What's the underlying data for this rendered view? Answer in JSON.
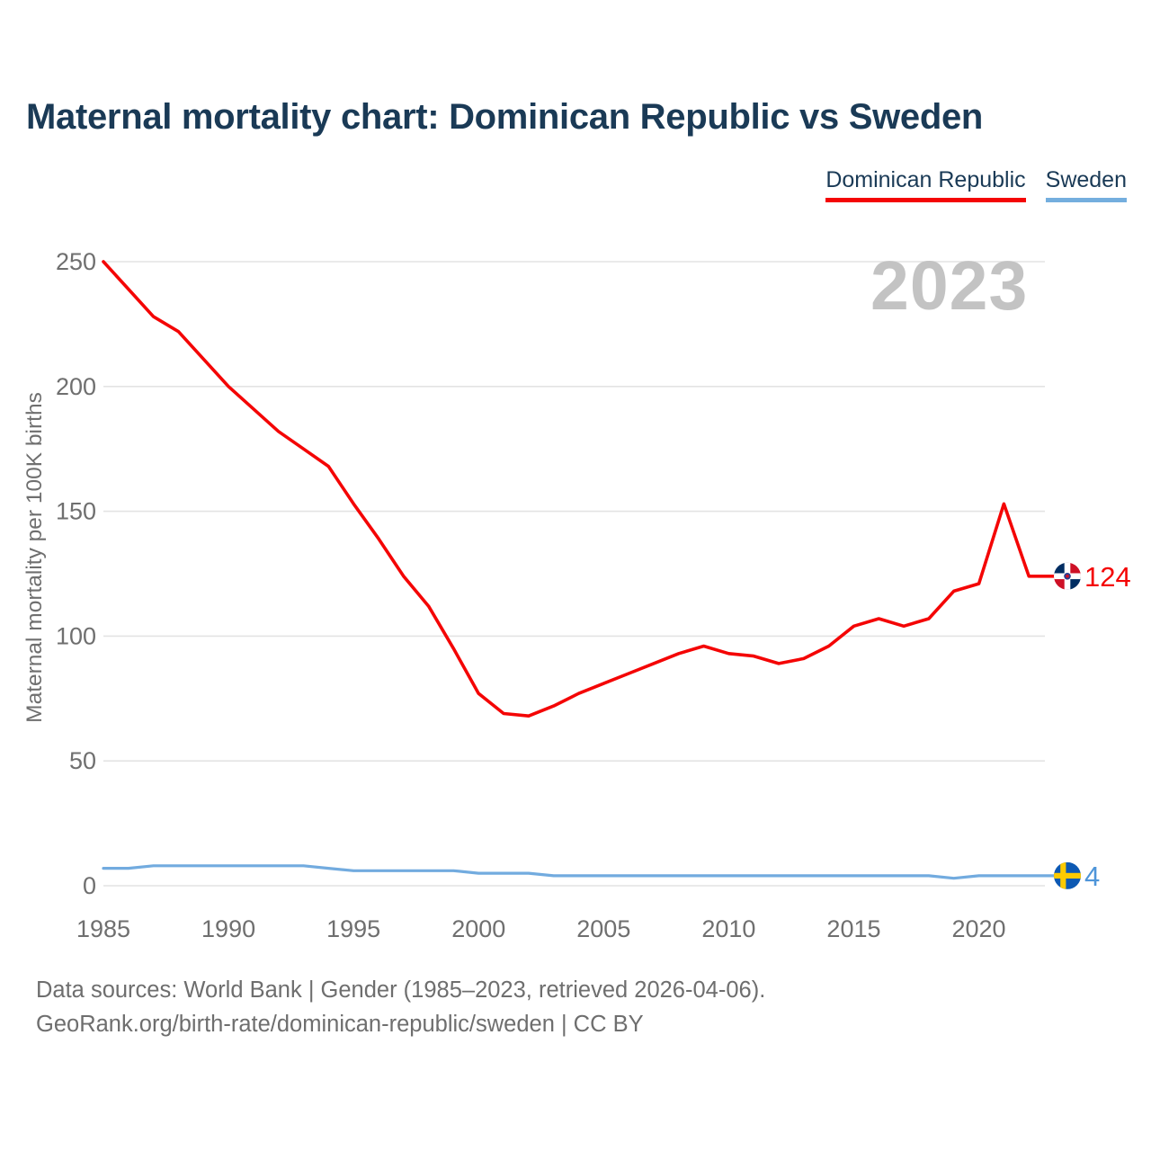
{
  "title": "Maternal mortality chart: Dominican Republic vs Sweden",
  "legend": [
    {
      "label": "Dominican Republic",
      "color": "#f40505"
    },
    {
      "label": "Sweden",
      "color": "#74aede"
    }
  ],
  "watermark": "2023",
  "chart_data": {
    "type": "line",
    "title": "Maternal mortality chart: Dominican Republic vs Sweden",
    "xlabel": "",
    "ylabel": "Maternal mortality per 100K births",
    "x": [
      1985,
      1986,
      1987,
      1988,
      1989,
      1990,
      1991,
      1992,
      1993,
      1994,
      1995,
      1996,
      1997,
      1998,
      1999,
      2000,
      2001,
      2002,
      2003,
      2004,
      2005,
      2006,
      2007,
      2008,
      2009,
      2010,
      2011,
      2012,
      2013,
      2014,
      2015,
      2016,
      2017,
      2018,
      2019,
      2020,
      2021,
      2022,
      2023
    ],
    "series": [
      {
        "name": "Dominican Republic",
        "color": "#f40505",
        "flag": "dominican-republic",
        "end_label": "124",
        "end_label_color": "#f40505",
        "values": [
          250,
          239,
          228,
          222,
          211,
          200,
          191,
          182,
          175,
          168,
          153,
          139,
          124,
          112,
          95,
          77,
          69,
          68,
          72,
          77,
          81,
          85,
          89,
          93,
          96,
          93,
          92,
          89,
          91,
          96,
          104,
          107,
          104,
          107,
          118,
          121,
          153,
          124,
          124
        ]
      },
      {
        "name": "Sweden",
        "color": "#72abdf",
        "flag": "sweden",
        "end_label": "4",
        "end_label_color": "#4e95d9",
        "values": [
          7,
          7,
          8,
          8,
          8,
          8,
          8,
          8,
          8,
          7,
          6,
          6,
          6,
          6,
          6,
          5,
          5,
          5,
          4,
          4,
          4,
          4,
          4,
          4,
          4,
          4,
          4,
          4,
          4,
          4,
          4,
          4,
          4,
          4,
          3,
          4,
          4,
          4,
          4
        ]
      }
    ],
    "yticks": [
      0,
      50,
      100,
      150,
      200,
      250
    ],
    "xticks": [
      1985,
      1990,
      1995,
      2000,
      2005,
      2010,
      2015,
      2020
    ],
    "ylim": [
      0,
      250
    ],
    "xlim": [
      1985,
      2023
    ],
    "grid": true,
    "gridline_color": "#e3e3e3",
    "legend_position": "top-right"
  },
  "flag_colors": {
    "dominican_republic": {
      "blue": "#002d62",
      "red": "#ce1126",
      "white": "#ffffff",
      "emblem_ring": "#2a3b8f"
    },
    "sweden": {
      "blue": "#0d59b3",
      "yellow": "#fdca00"
    }
  },
  "footer": {
    "line1": "Data sources: World Bank | Gender (1985–2023, retrieved 2026-04-06).",
    "line2": "GeoRank.org/birth-rate/dominican-republic/sweden | CC BY"
  }
}
